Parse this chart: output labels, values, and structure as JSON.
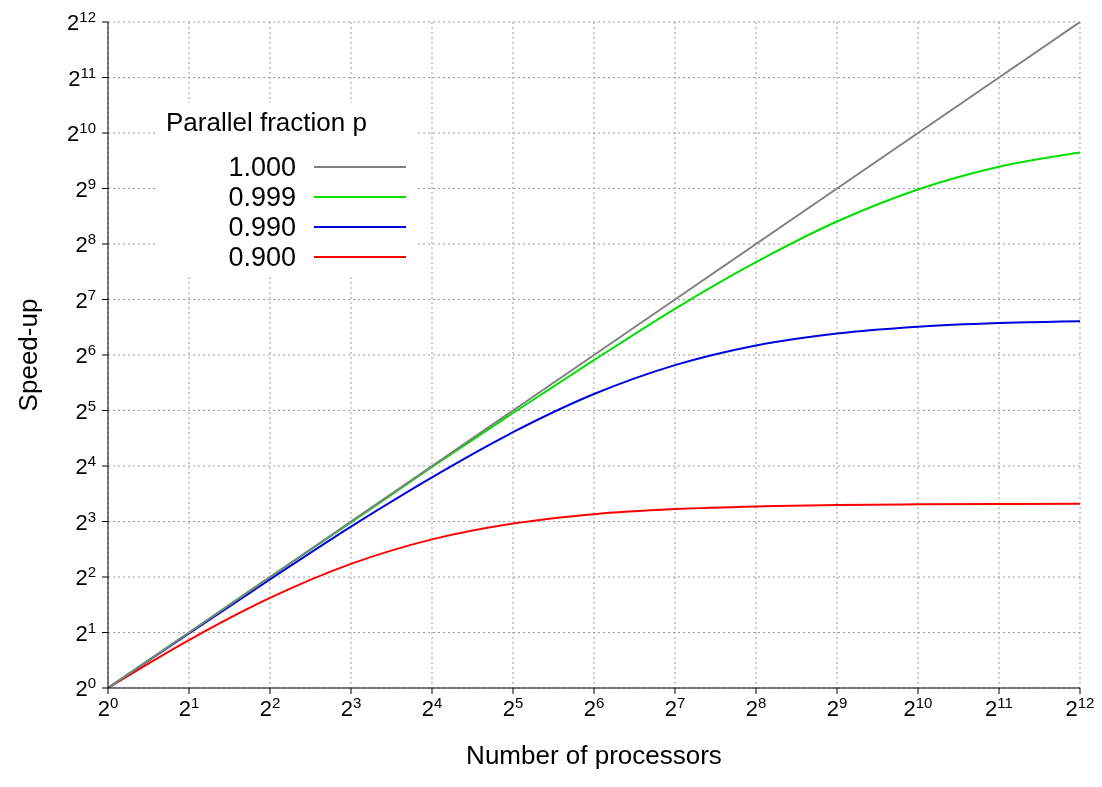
{
  "chart_data": {
    "type": "line",
    "xlabel": "Number of processors",
    "ylabel": "Speed-up",
    "legend_title": "Parallel fraction p",
    "legend": "top left",
    "grid": true,
    "log": "xy",
    "marker": "none",
    "line_style": "solid",
    "x": [
      1,
      2,
      4,
      8,
      16,
      32,
      64,
      128,
      256,
      512,
      1024,
      2048,
      4096
    ],
    "xlim": [
      1,
      4096
    ],
    "ylim": [
      1,
      4096
    ],
    "xticks": [
      {
        "value": 1,
        "label": "2$^{0}$"
      },
      {
        "value": 2,
        "label": "2$^{1}$"
      },
      {
        "value": 4,
        "label": "2$^{2}$"
      },
      {
        "value": 8,
        "label": "2$^{3}$"
      },
      {
        "value": 16,
        "label": "2$^{4}$"
      },
      {
        "value": 32,
        "label": "2$^{5}$"
      },
      {
        "value": 64,
        "label": "2$^{6}$"
      },
      {
        "value": 128,
        "label": "2$^{7}$"
      },
      {
        "value": 256,
        "label": "2$^{8}$"
      },
      {
        "value": 512,
        "label": "2$^{9}$"
      },
      {
        "value": 1024,
        "label": "2$^{10}$"
      },
      {
        "value": 2048,
        "label": "2$^{11}$"
      },
      {
        "value": 4096,
        "label": "2$^{12}$"
      }
    ],
    "yticks": [
      {
        "value": 1,
        "label": "2$^{0}$"
      },
      {
        "value": 2,
        "label": "2$^{1}$"
      },
      {
        "value": 4,
        "label": "2$^{2}$"
      },
      {
        "value": 8,
        "label": "2$^{3}$"
      },
      {
        "value": 16,
        "label": "2$^{4}$"
      },
      {
        "value": 32,
        "label": "2$^{5}$"
      },
      {
        "value": 64,
        "label": "2$^{6}$"
      },
      {
        "value": 128,
        "label": "2$^{7}$"
      },
      {
        "value": 256,
        "label": "2$^{8}$"
      },
      {
        "value": 512,
        "label": "2$^{9}$"
      },
      {
        "value": 1024,
        "label": "2$^{10}$"
      },
      {
        "value": 2048,
        "label": "2$^{11}$"
      },
      {
        "value": 4096,
        "label": "2$^{12}$"
      }
    ],
    "series": [
      {
        "name": "1.000",
        "color": "#808080",
        "values": [
          1,
          2,
          4,
          8,
          16,
          32,
          64,
          128,
          256,
          512,
          1024,
          2048,
          4096
        ]
      },
      {
        "name": "0.999",
        "color": "#00e000",
        "values": [
          1,
          2.0,
          4.0,
          7.9,
          15.8,
          31,
          60,
          114,
          204,
          339,
          506,
          672,
          804
        ]
      },
      {
        "name": "0.990",
        "color": "#0000e0",
        "values": [
          1,
          1.98,
          3.88,
          7.5,
          13.9,
          24.4,
          39.3,
          56.4,
          72.1,
          83.8,
          91.2,
          95.4,
          97.6
        ]
      },
      {
        "name": "0.900",
        "color": "#ff0000",
        "values": [
          1,
          1.82,
          3.08,
          4.71,
          6.4,
          7.8,
          8.77,
          9.34,
          9.66,
          9.83,
          9.91,
          9.96,
          9.98
        ]
      }
    ]
  }
}
